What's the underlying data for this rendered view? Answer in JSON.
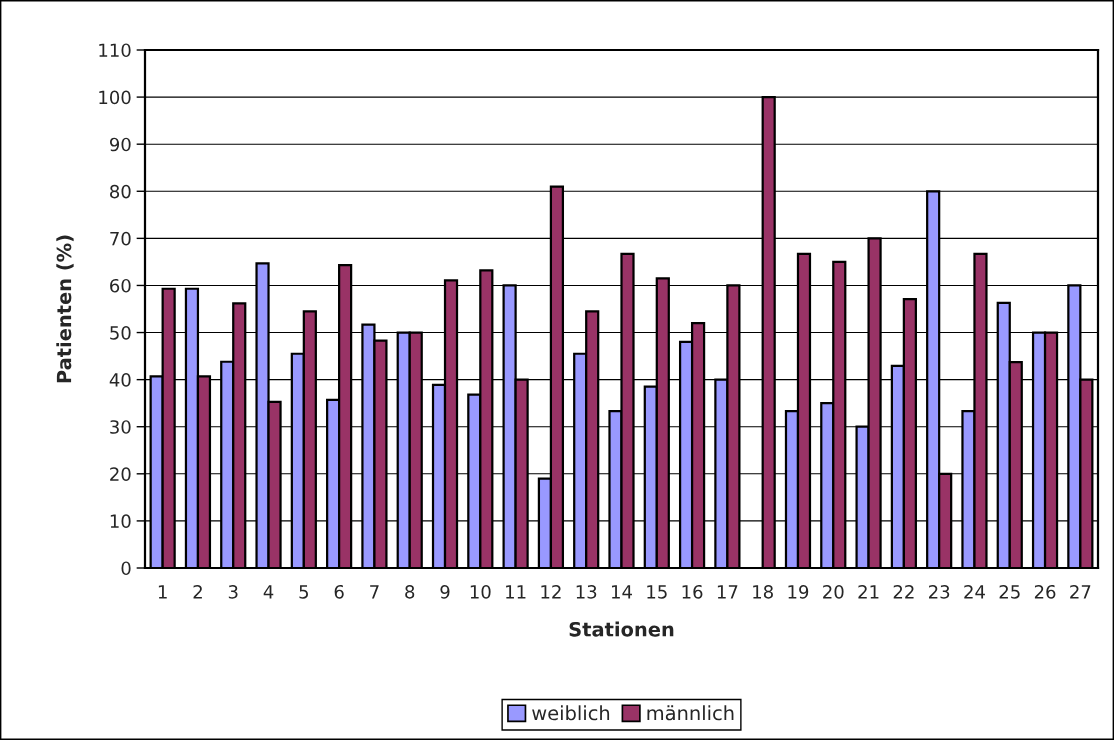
{
  "chart_data": {
    "type": "bar",
    "xlabel": "Stationen",
    "ylabel": "Patienten (%)",
    "categories": [
      "1",
      "2",
      "3",
      "4",
      "5",
      "6",
      "7",
      "8",
      "9",
      "10",
      "11",
      "12",
      "13",
      "14",
      "15",
      "16",
      "17",
      "18",
      "19",
      "20",
      "21",
      "22",
      "23",
      "24",
      "25",
      "26",
      "27"
    ],
    "series": [
      {
        "name": "weiblich",
        "color": "#9999ff",
        "values": [
          40.7,
          59.3,
          43.8,
          64.7,
          45.5,
          35.7,
          51.7,
          50,
          38.9,
          36.8,
          60,
          19,
          45.5,
          33.3,
          38.5,
          48,
          40,
          null,
          33.3,
          35,
          30,
          42.9,
          80,
          33.3,
          56.3,
          50,
          60
        ]
      },
      {
        "name": "männlich",
        "color": "#993366",
        "values": [
          59.3,
          40.7,
          56.2,
          35.3,
          54.5,
          64.3,
          48.3,
          50,
          61.1,
          63.2,
          40,
          81,
          54.5,
          66.7,
          61.5,
          52,
          60,
          100,
          66.7,
          65,
          70,
          57.1,
          20,
          66.7,
          43.7,
          50,
          40
        ]
      }
    ],
    "ylim": [
      0,
      110
    ],
    "yticks": [
      0,
      10,
      20,
      30,
      40,
      50,
      60,
      70,
      80,
      90,
      100,
      110
    ],
    "grid": "y",
    "legend": "bottom"
  }
}
